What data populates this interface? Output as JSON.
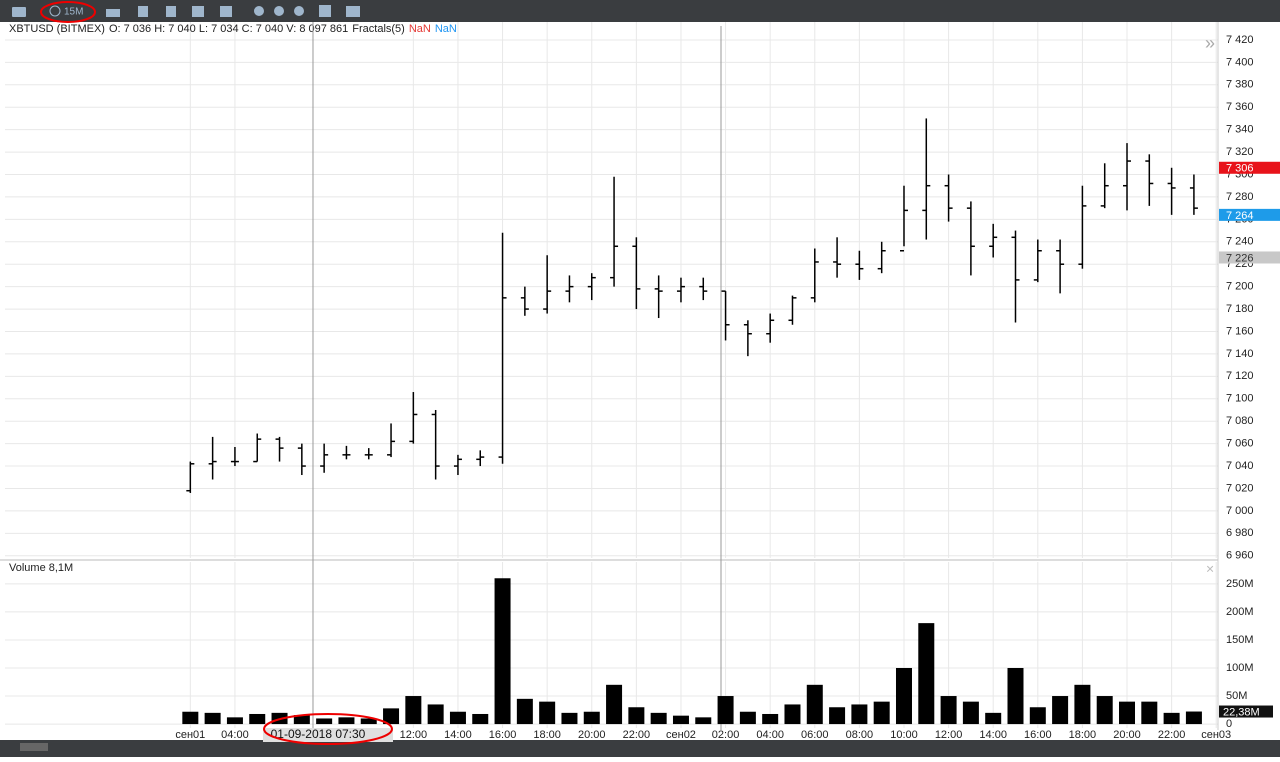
{
  "toolbar": {
    "timeframe": "15M"
  },
  "crosshair": {
    "x": 7.5,
    "label": "01-09-2018 07:30"
  },
  "chart_data": [
    {
      "type": "ohlc",
      "title": "XBTUSD (BITMEX)",
      "legend_text": "O: 7 036 H: 7 040 L: 7 034 C: 7 040 V: 8 097 861",
      "indicator": "Fractals(5)",
      "indicator_values": [
        "NaN",
        "NaN"
      ],
      "indicator_colors": [
        "#e53935",
        "#2196f3"
      ],
      "color": "#000000",
      "grid": true,
      "x": [
        2,
        3,
        4,
        5,
        6,
        7,
        8,
        9,
        10,
        11,
        12,
        13,
        14,
        15,
        16,
        17,
        18,
        19,
        20,
        21,
        22,
        23,
        24,
        25,
        26,
        27,
        28,
        29,
        30,
        31,
        32,
        33,
        34,
        35,
        36,
        37,
        38,
        39,
        40,
        41,
        42,
        43,
        44,
        45,
        46,
        47
      ],
      "open": [
        7018,
        7042,
        7044,
        7044,
        7064,
        7056,
        7040,
        7050,
        7050,
        7050,
        7062,
        7086,
        7040,
        7046,
        7048,
        7190,
        7180,
        7196,
        7200,
        7208,
        7236,
        7198,
        7196,
        7200,
        7196,
        7166,
        7158,
        7170,
        7190,
        7222,
        7220,
        7216,
        7232,
        7268,
        7290,
        7270,
        7236,
        7244,
        7206,
        7232,
        7220,
        7272,
        7290,
        7312,
        7292,
        7288
      ],
      "high": [
        7044,
        7066,
        7057,
        7069,
        7066,
        7060,
        7060,
        7058,
        7056,
        7078,
        7106,
        7090,
        7050,
        7054,
        7248,
        7200,
        7228,
        7210,
        7212,
        7298,
        7244,
        7210,
        7208,
        7208,
        7196,
        7170,
        7176,
        7192,
        7234,
        7244,
        7232,
        7240,
        7290,
        7350,
        7300,
        7276,
        7256,
        7250,
        7242,
        7242,
        7290,
        7310,
        7328,
        7318,
        7306,
        7300
      ],
      "low": [
        7016,
        7028,
        7040,
        7044,
        7044,
        7032,
        7034,
        7046,
        7046,
        7048,
        7060,
        7028,
        7032,
        7040,
        7042,
        7174,
        7176,
        7186,
        7188,
        7200,
        7180,
        7172,
        7186,
        7188,
        7152,
        7138,
        7150,
        7166,
        7186,
        7208,
        7206,
        7212,
        7236,
        7242,
        7258,
        7210,
        7226,
        7168,
        7204,
        7194,
        7216,
        7270,
        7268,
        7272,
        7264,
        7264
      ],
      "close": [
        7042,
        7044,
        7044,
        7064,
        7056,
        7040,
        7050,
        7050,
        7050,
        7062,
        7086,
        7040,
        7046,
        7048,
        7190,
        7180,
        7196,
        7200,
        7208,
        7236,
        7198,
        7196,
        7200,
        7196,
        7166,
        7158,
        7170,
        7190,
        7222,
        7220,
        7216,
        7232,
        7268,
        7290,
        7270,
        7236,
        7244,
        7206,
        7232,
        7220,
        7272,
        7290,
        7312,
        7292,
        7288,
        7270
      ],
      "xlim": [
        -6.31,
        48.08
      ],
      "xticks": [
        {
          "value": 2,
          "label": "сен01"
        },
        {
          "value": 4,
          "label": "04:00"
        },
        {
          "value": 12,
          "label": "12:00"
        },
        {
          "value": 14,
          "label": "14:00"
        },
        {
          "value": 16,
          "label": "16:00"
        },
        {
          "value": 18,
          "label": "18:00"
        },
        {
          "value": 20,
          "label": "20:00"
        },
        {
          "value": 22,
          "label": "22:00"
        },
        {
          "value": 24,
          "label": "сен02"
        },
        {
          "value": 26,
          "label": "02:00"
        },
        {
          "value": 28,
          "label": "04:00"
        },
        {
          "value": 30,
          "label": "06:00"
        },
        {
          "value": 32,
          "label": "08:00"
        },
        {
          "value": 34,
          "label": "10:00"
        },
        {
          "value": 36,
          "label": "12:00"
        },
        {
          "value": 38,
          "label": "14:00"
        },
        {
          "value": 40,
          "label": "16:00"
        },
        {
          "value": 42,
          "label": "18:00"
        },
        {
          "value": 44,
          "label": "20:00"
        },
        {
          "value": 46,
          "label": "22:00"
        },
        {
          "value": 48,
          "label": "сен03"
        }
      ],
      "ylim": [
        6958,
        7436
      ],
      "yticks": [
        {
          "value": 6960,
          "label": "6 960"
        },
        {
          "value": 6980,
          "label": "6 980"
        },
        {
          "value": 7000,
          "label": "7 000"
        },
        {
          "value": 7020,
          "label": "7 020"
        },
        {
          "value": 7040,
          "label": "7 040"
        },
        {
          "value": 7060,
          "label": "7 060"
        },
        {
          "value": 7080,
          "label": "7 080"
        },
        {
          "value": 7100,
          "label": "7 100"
        },
        {
          "value": 7120,
          "label": "7 120"
        },
        {
          "value": 7140,
          "label": "7 140"
        },
        {
          "value": 7160,
          "label": "7 160"
        },
        {
          "value": 7180,
          "label": "7 180"
        },
        {
          "value": 7200,
          "label": "7 200"
        },
        {
          "value": 7220,
          "label": "7 220"
        },
        {
          "value": 7240,
          "label": "7 240"
        },
        {
          "value": 7260,
          "label": "7 260"
        },
        {
          "value": 7280,
          "label": "7 280"
        },
        {
          "value": 7300,
          "label": "7 300"
        },
        {
          "value": 7320,
          "label": "7 320"
        },
        {
          "value": 7340,
          "label": "7 340"
        },
        {
          "value": 7360,
          "label": "7 360"
        },
        {
          "value": 7380,
          "label": "7 380"
        },
        {
          "value": 7400,
          "label": "7 400"
        },
        {
          "value": 7420,
          "label": "7 420"
        }
      ],
      "badges": [
        {
          "value": 7306,
          "label": "7 306",
          "color": "#e8131a"
        },
        {
          "value": 7264,
          "label": "7 264",
          "color": "#1e9be9"
        },
        {
          "value": 7226,
          "label": "7 226",
          "color": "#c8c8c8"
        }
      ]
    },
    {
      "type": "volume",
      "title": "Volume 8,1M",
      "color": "#000000",
      "grid": true,
      "values": [
        22,
        20,
        12,
        18,
        20,
        16,
        10,
        12,
        10,
        28,
        50,
        35,
        22,
        18,
        260,
        45,
        40,
        20,
        22,
        70,
        30,
        20,
        15,
        12,
        50,
        22,
        18,
        35,
        70,
        30,
        35,
        40,
        100,
        180,
        50,
        40,
        20,
        100,
        30,
        50,
        70,
        50,
        40,
        40,
        20,
        22.38
      ],
      "ylim": [
        -7,
        289
      ],
      "yticks": [
        0,
        {
          "value": 50,
          "label": "50M"
        },
        {
          "value": 100,
          "label": "100M"
        },
        {
          "value": 150,
          "label": "150M"
        },
        {
          "value": 200,
          "label": "200M"
        },
        {
          "value": 250,
          "label": "250M"
        }
      ],
      "badge": {
        "value": 22.38,
        "label": "22,38M"
      }
    }
  ]
}
